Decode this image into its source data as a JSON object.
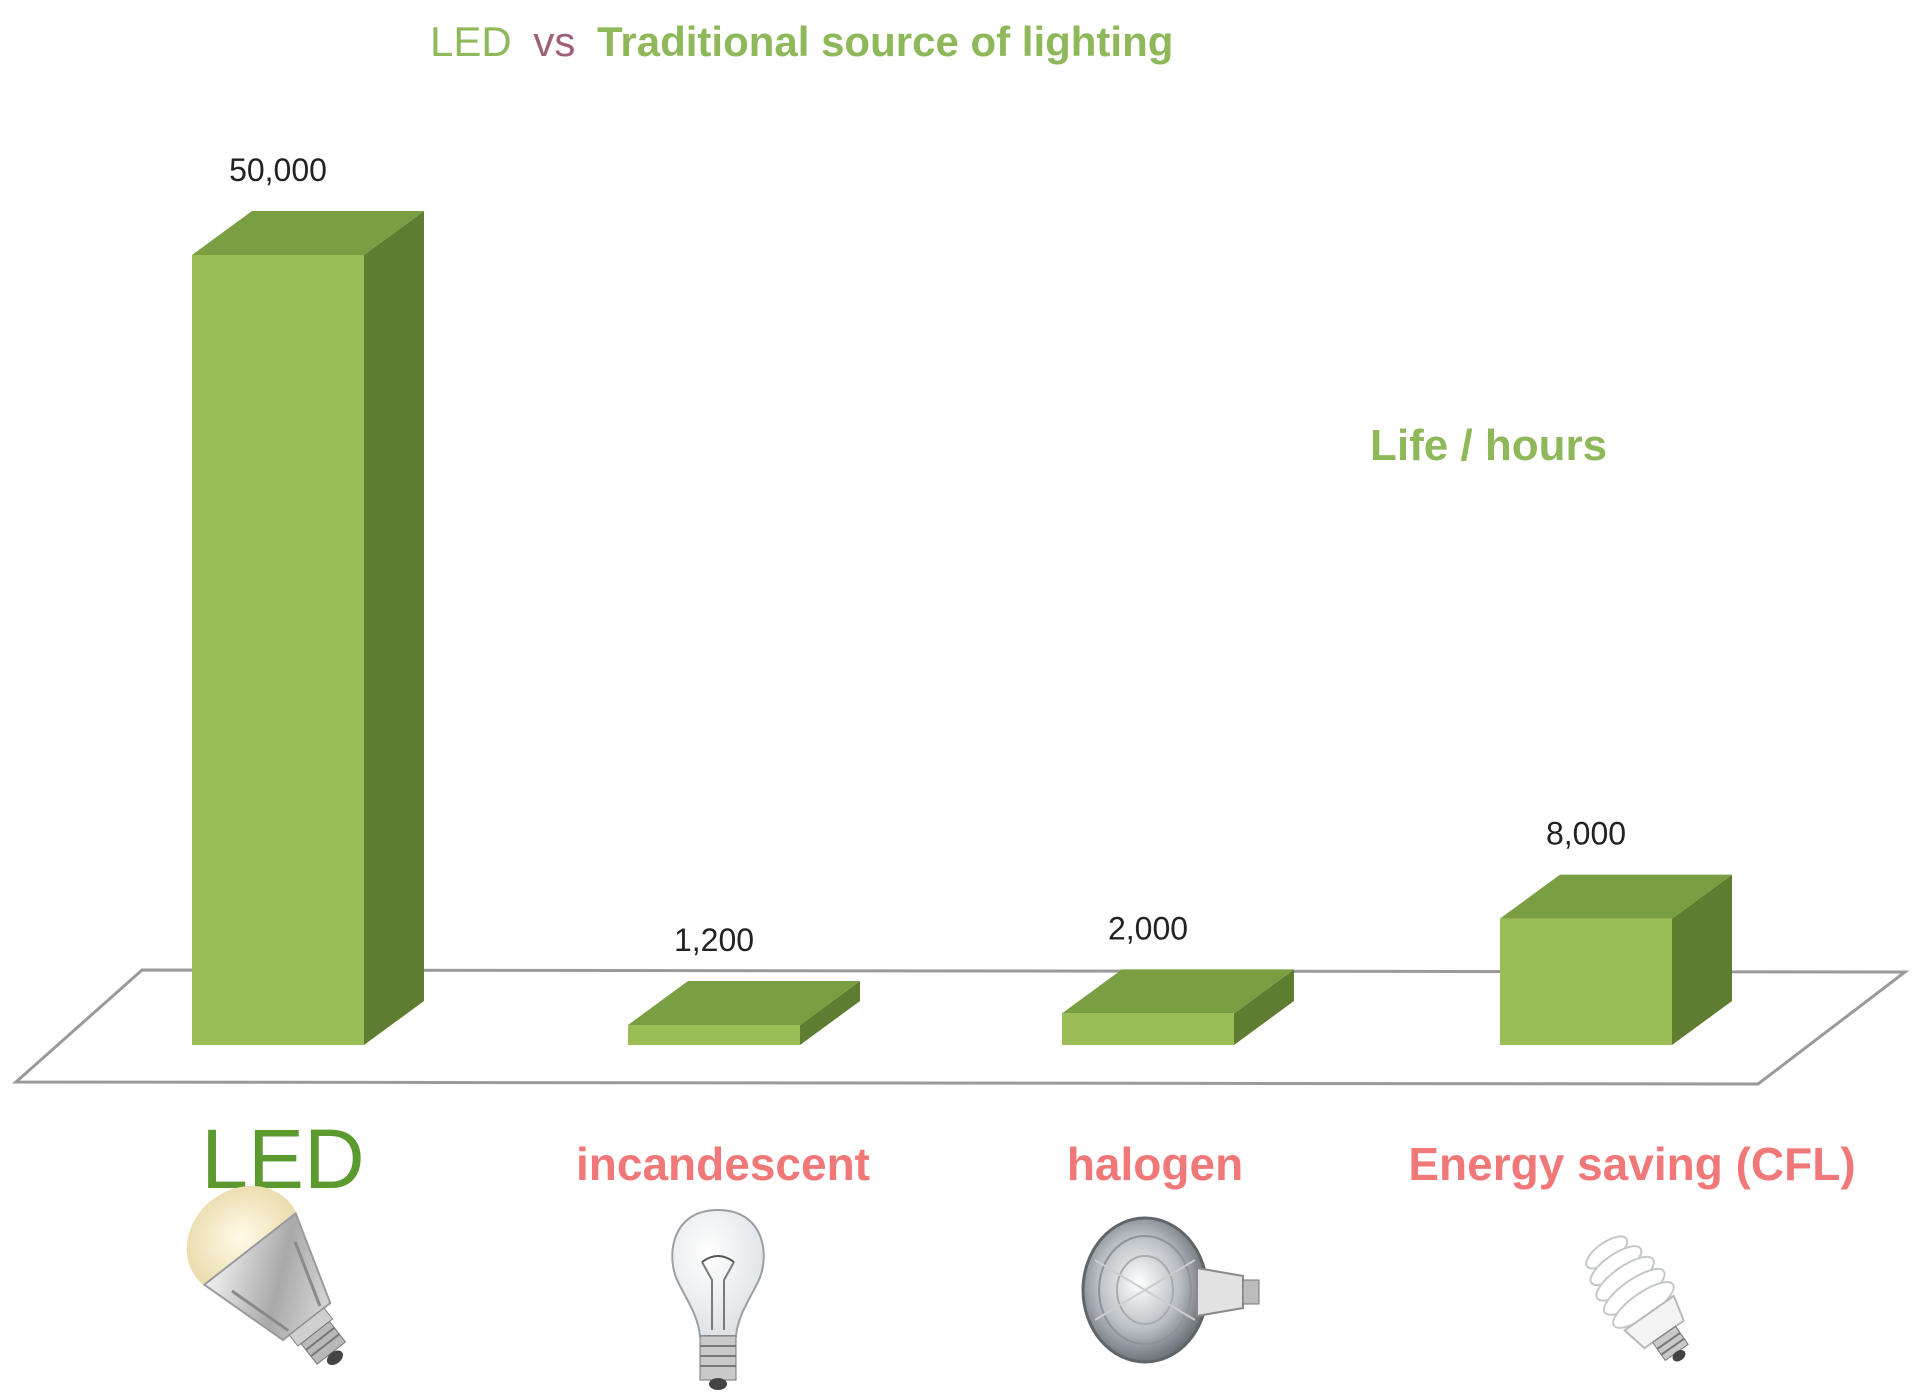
{
  "chart_data": {
    "type": "bar",
    "title_parts": [
      "LED",
      "vs",
      "Traditional source of lighting"
    ],
    "unit_label": "Life / hours",
    "categories": [
      "LED",
      "incandescent",
      "halogen",
      "Energy saving (CFL)"
    ],
    "values": [
      50000,
      1200,
      2000,
      8000
    ],
    "value_labels": [
      "50,000",
      "1,200",
      "2,000",
      "8,000"
    ],
    "icons": [
      "led-bulb-icon",
      "incandescent-bulb-icon",
      "halogen-bulb-icon",
      "cfl-bulb-icon"
    ],
    "colors": {
      "bar_front": "#9bbd56",
      "bar_top": "#7a9f43",
      "bar_side": "#5f7d30",
      "led_label": "#5a9a2e",
      "traditional_label": "#f07878",
      "title_green": "#8fb85a",
      "title_vs": "#a0607a"
    },
    "grid": false,
    "legend": "none"
  }
}
